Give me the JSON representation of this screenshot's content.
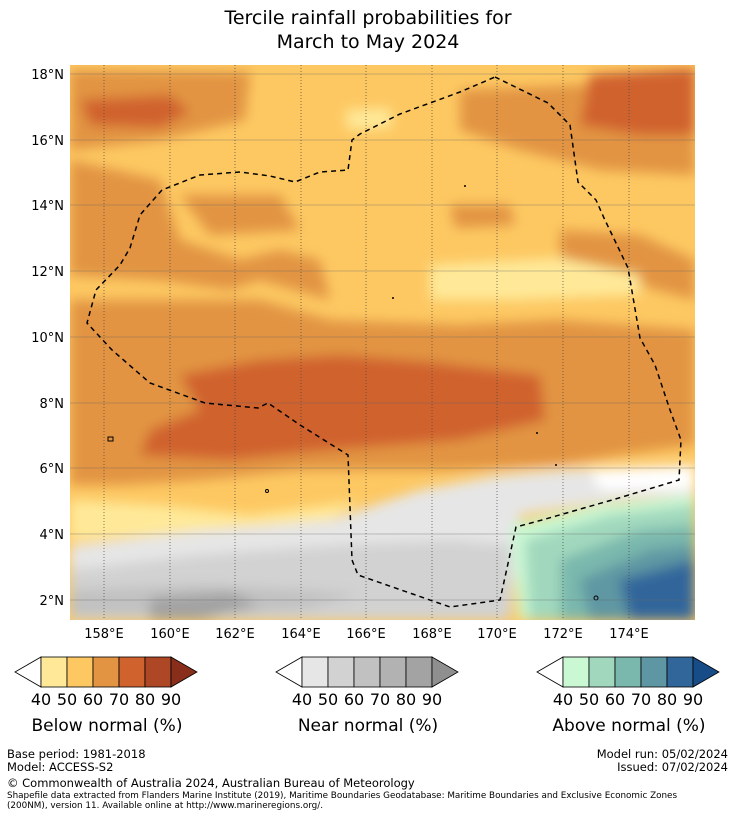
{
  "title": {
    "line1": "Tercile rainfall probabilities for",
    "line2": "March to May 2024"
  },
  "map": {
    "lon_ticks": [
      "158°E",
      "160°E",
      "162°E",
      "164°E",
      "166°E",
      "168°E",
      "170°E",
      "172°E",
      "174°E"
    ],
    "lat_ticks": [
      "18°N",
      "16°N",
      "14°N",
      "12°N",
      "10°N",
      "8°N",
      "6°N",
      "4°N",
      "2°N"
    ],
    "lon_range": [
      157,
      176
    ],
    "lat_range": [
      1.4,
      18.4
    ]
  },
  "legends": [
    {
      "label": "Below normal (%)",
      "ticks": [
        "40",
        "50",
        "60",
        "70",
        "80",
        "90"
      ],
      "colors": [
        "#ffffff",
        "#ffe999",
        "#fdc862",
        "#e29442",
        "#d0622d",
        "#ad4726",
        "#8a2e1c"
      ]
    },
    {
      "label": "Near normal (%)",
      "ticks": [
        "40",
        "50",
        "60",
        "70",
        "80",
        "90"
      ],
      "colors": [
        "#ffffff",
        "#e6e6e6",
        "#d2d2d2",
        "#c1c1c1",
        "#b2b2b2",
        "#a3a3a3",
        "#8f8f8f"
      ]
    },
    {
      "label": "Above normal (%)",
      "ticks": [
        "40",
        "50",
        "60",
        "70",
        "80",
        "90"
      ],
      "colors": [
        "#ffffff",
        "#c9f8d3",
        "#a1d8bd",
        "#7ab8ad",
        "#5e97a3",
        "#31669b",
        "#174c88"
      ]
    }
  ],
  "footer": {
    "base_period": "Base period: 1981-2018",
    "model": "Model: ACCESS-S2",
    "model_run": "Model run: 05/02/2024",
    "issued": "Issued: 07/02/2024",
    "copyright": "© Commonwealth of Australia 2024, Australian Bureau of Meteorology",
    "shapefile_line1": "Shapefile data extracted from Flanders Marine Institute (2019), Maritime Boundaries Geodatabase: Maritime Boundaries and Exclusive Economic Zones",
    "shapefile_line2": "(200NM), version 11. Available online at http://www.marineregions.org/."
  }
}
